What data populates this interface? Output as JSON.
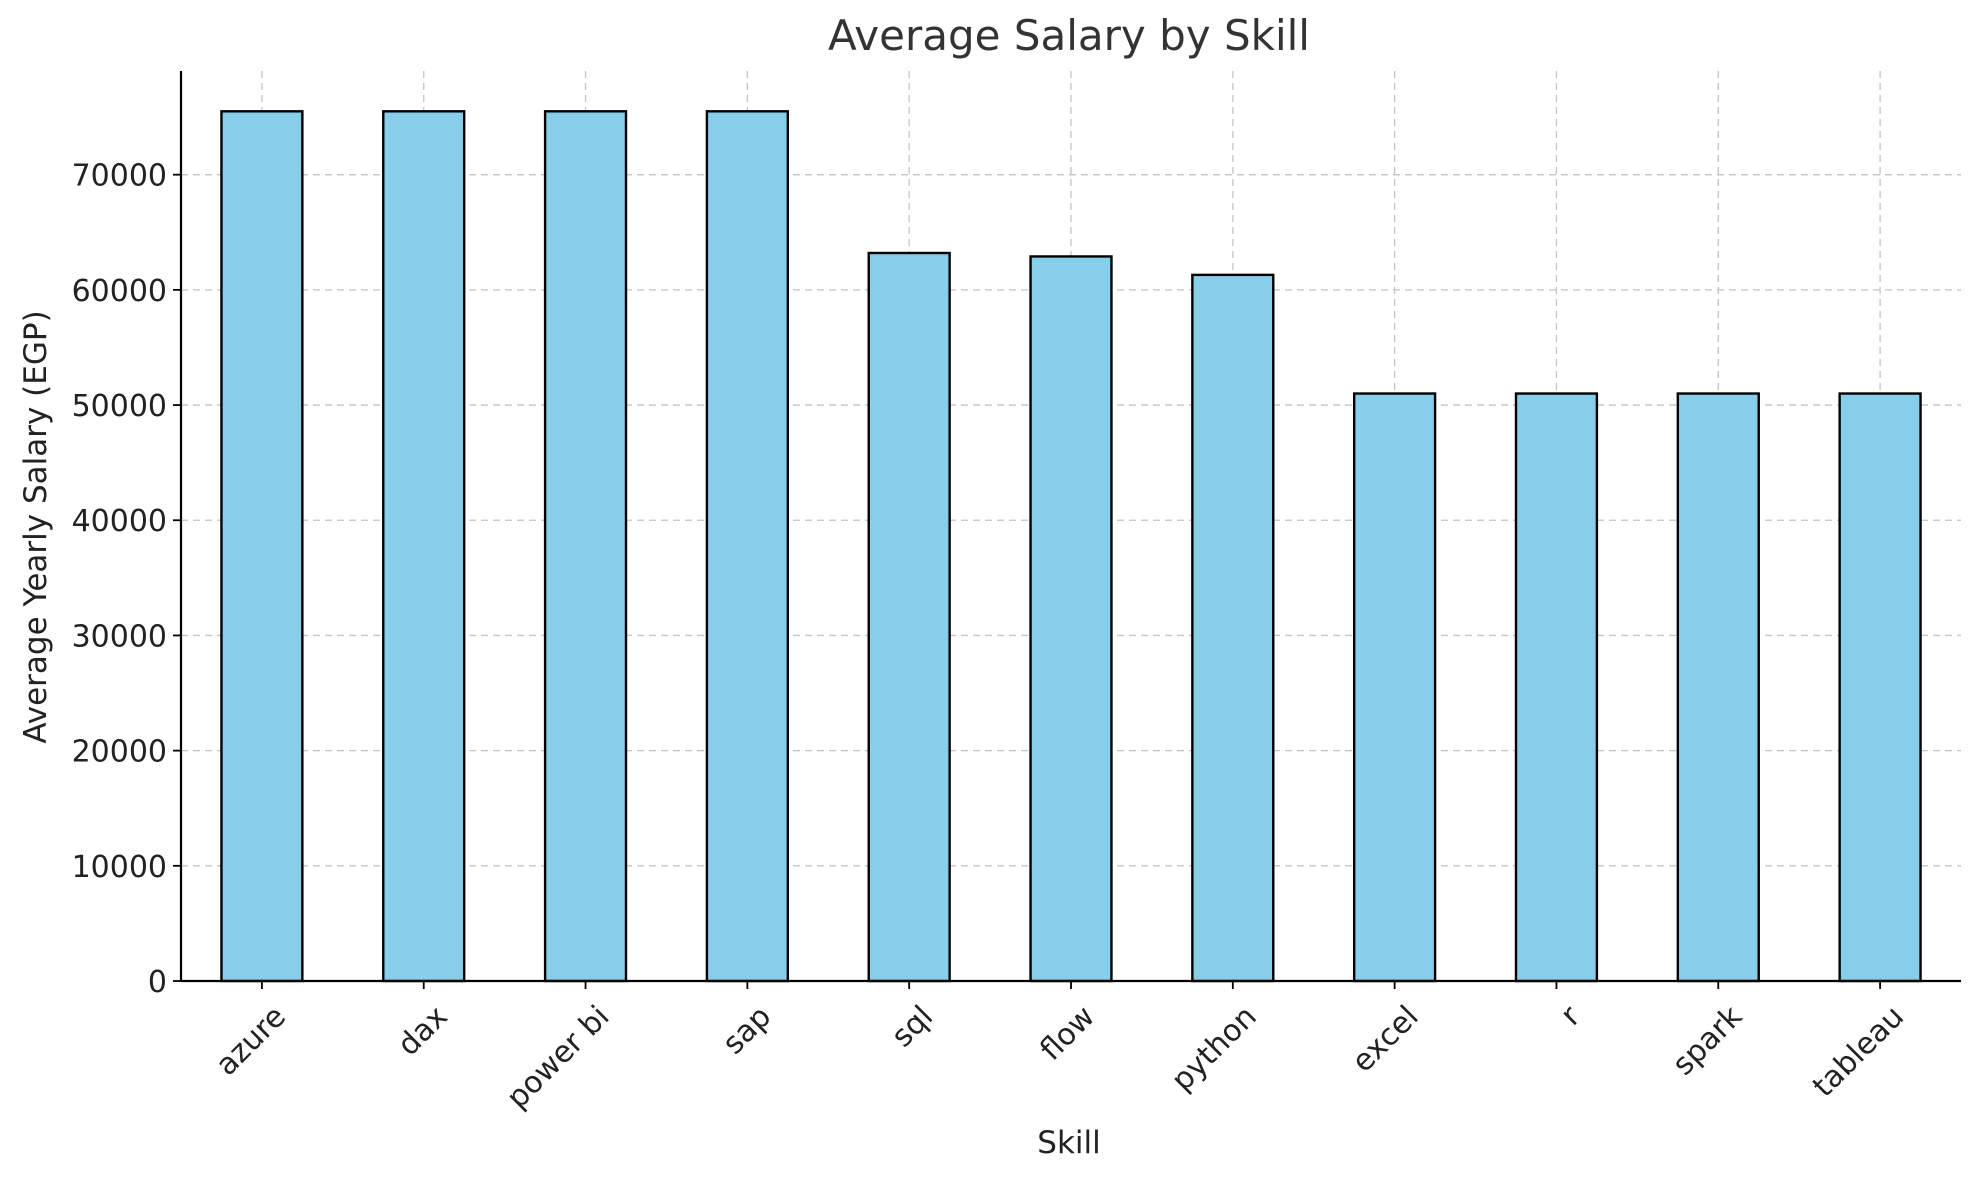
{
  "chart_data": {
    "type": "bar",
    "title": "Average Salary by Skill",
    "xlabel": "Skill",
    "ylabel": "Average Yearly Salary (EGP)",
    "categories": [
      "azure",
      "dax",
      "power bi",
      "sap",
      "sql",
      "flow",
      "python",
      "excel",
      "r",
      "spark",
      "tableau"
    ],
    "values": [
      75500,
      75500,
      75500,
      75500,
      63200,
      62900,
      61300,
      51000,
      51000,
      51000,
      51000
    ],
    "ylim": [
      0,
      79000
    ],
    "yticks": [
      0,
      10000,
      20000,
      30000,
      40000,
      50000,
      60000,
      70000
    ],
    "ytick_labels": [
      "0",
      "10000",
      "20000",
      "30000",
      "40000",
      "50000",
      "60000",
      "70000"
    ],
    "grid": true,
    "bar_color": "#87ceeb",
    "edge_color": "#000000"
  }
}
